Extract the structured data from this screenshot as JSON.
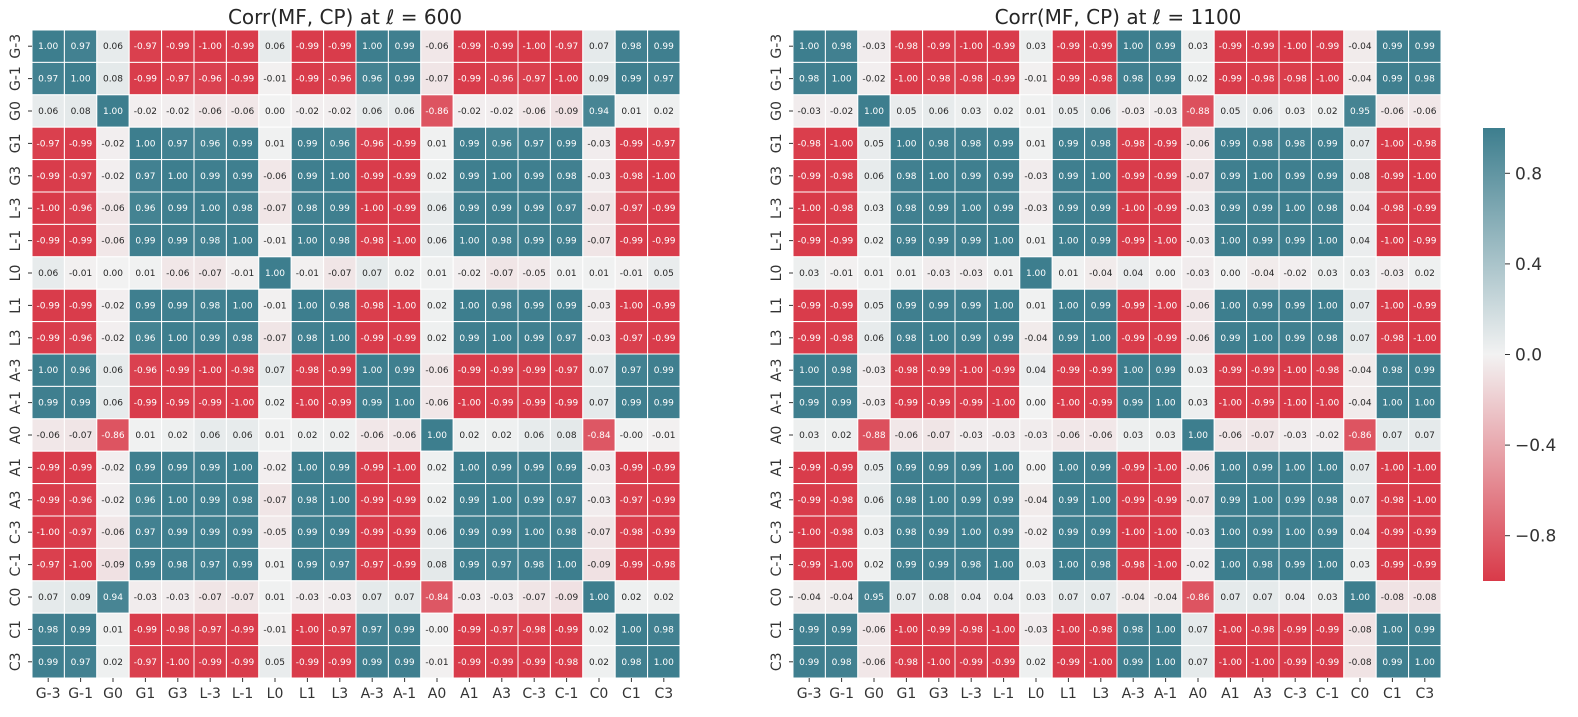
{
  "colors": {
    "negative": "#d93a49",
    "neutral": "#f2f2f2",
    "positive": "#3d7e8e"
  },
  "colorbar": {
    "vmin": -1,
    "vmax": 1,
    "ticks": [
      "0.8",
      "0.4",
      "0.0",
      "−0.4",
      "−0.8"
    ],
    "tick_values": [
      0.8,
      0.4,
      0.0,
      -0.4,
      -0.8
    ]
  },
  "chart_data": [
    {
      "type": "heatmap",
      "title": "Corr(MF, CP) at ℓ = 600",
      "labels": [
        "G-3",
        "G-1",
        "G0",
        "G1",
        "G3",
        "L-3",
        "L-1",
        "L0",
        "L1",
        "L3",
        "A-3",
        "A-1",
        "A0",
        "A1",
        "A3",
        "C-3",
        "C-1",
        "C0",
        "C1",
        "C3"
      ],
      "matrix": [
        [
          1.0,
          0.97,
          0.06,
          -0.97,
          -0.99,
          -1.0,
          -0.99,
          0.06,
          -0.99,
          -0.99,
          1.0,
          0.99,
          -0.06,
          -0.99,
          -0.99,
          -1.0,
          -0.97,
          0.07,
          0.98,
          0.99
        ],
        [
          0.97,
          1.0,
          0.08,
          -0.99,
          -0.97,
          -0.96,
          -0.99,
          -0.01,
          -0.99,
          -0.96,
          0.96,
          0.99,
          -0.07,
          -0.99,
          -0.96,
          -0.97,
          -1.0,
          0.09,
          0.99,
          0.97
        ],
        [
          0.06,
          0.08,
          1.0,
          -0.02,
          -0.02,
          -0.06,
          -0.06,
          0.0,
          -0.02,
          -0.02,
          0.06,
          0.06,
          -0.86,
          -0.02,
          -0.02,
          -0.06,
          -0.09,
          0.94,
          0.01,
          0.02
        ],
        [
          -0.97,
          -0.99,
          -0.02,
          1.0,
          0.97,
          0.96,
          0.99,
          0.01,
          0.99,
          0.96,
          -0.96,
          -0.99,
          0.01,
          0.99,
          0.96,
          0.97,
          0.99,
          -0.03,
          -0.99,
          -0.97
        ],
        [
          -0.99,
          -0.97,
          -0.02,
          0.97,
          1.0,
          0.99,
          0.99,
          -0.06,
          0.99,
          1.0,
          -0.99,
          -0.99,
          0.02,
          0.99,
          1.0,
          0.99,
          0.98,
          -0.03,
          -0.98,
          -1.0
        ],
        [
          -1.0,
          -0.96,
          -0.06,
          0.96,
          0.99,
          1.0,
          0.98,
          -0.07,
          0.98,
          0.99,
          -1.0,
          -0.99,
          0.06,
          0.99,
          0.99,
          0.99,
          0.97,
          -0.07,
          -0.97,
          -0.99
        ],
        [
          -0.99,
          -0.99,
          -0.06,
          0.99,
          0.99,
          0.98,
          1.0,
          -0.01,
          1.0,
          0.98,
          -0.98,
          -1.0,
          0.06,
          1.0,
          0.98,
          0.99,
          0.99,
          -0.07,
          -0.99,
          -0.99
        ],
        [
          0.06,
          -0.01,
          0.0,
          0.01,
          -0.06,
          -0.07,
          -0.01,
          1.0,
          -0.01,
          -0.07,
          0.07,
          0.02,
          0.01,
          -0.02,
          -0.07,
          -0.05,
          0.01,
          0.01,
          -0.01,
          0.05
        ],
        [
          -0.99,
          -0.99,
          -0.02,
          0.99,
          0.99,
          0.98,
          1.0,
          -0.01,
          1.0,
          0.98,
          -0.98,
          -1.0,
          0.02,
          1.0,
          0.98,
          0.99,
          0.99,
          -0.03,
          -1.0,
          -0.99
        ],
        [
          -0.99,
          -0.96,
          -0.02,
          0.96,
          1.0,
          0.99,
          0.98,
          -0.07,
          0.98,
          1.0,
          -0.99,
          -0.99,
          0.02,
          0.99,
          1.0,
          0.99,
          0.97,
          -0.03,
          -0.97,
          -0.99
        ],
        [
          1.0,
          0.96,
          0.06,
          -0.96,
          -0.99,
          -1.0,
          -0.98,
          0.07,
          -0.98,
          -0.99,
          1.0,
          0.99,
          -0.06,
          -0.99,
          -0.99,
          -0.99,
          -0.97,
          0.07,
          0.97,
          0.99
        ],
        [
          0.99,
          0.99,
          0.06,
          -0.99,
          -0.99,
          -0.99,
          -1.0,
          0.02,
          -1.0,
          -0.99,
          0.99,
          1.0,
          -0.06,
          -1.0,
          -0.99,
          -0.99,
          -0.99,
          0.07,
          0.99,
          0.99
        ],
        [
          -0.06,
          -0.07,
          -0.86,
          0.01,
          0.02,
          0.06,
          0.06,
          0.01,
          0.02,
          0.02,
          -0.06,
          -0.06,
          1.0,
          0.02,
          0.02,
          0.06,
          0.08,
          -0.84,
          -0.0,
          -0.01
        ],
        [
          -0.99,
          -0.99,
          -0.02,
          0.99,
          0.99,
          0.99,
          1.0,
          -0.02,
          1.0,
          0.99,
          -0.99,
          -1.0,
          0.02,
          1.0,
          0.99,
          0.99,
          0.99,
          -0.03,
          -0.99,
          -0.99
        ],
        [
          -0.99,
          -0.96,
          -0.02,
          0.96,
          1.0,
          0.99,
          0.98,
          -0.07,
          0.98,
          1.0,
          -0.99,
          -0.99,
          0.02,
          0.99,
          1.0,
          0.99,
          0.97,
          -0.03,
          -0.97,
          -0.99
        ],
        [
          -1.0,
          -0.97,
          -0.06,
          0.97,
          0.99,
          0.99,
          0.99,
          -0.05,
          0.99,
          0.99,
          -0.99,
          -0.99,
          0.06,
          0.99,
          0.99,
          1.0,
          0.98,
          -0.07,
          -0.98,
          -0.99
        ],
        [
          -0.97,
          -1.0,
          -0.09,
          0.99,
          0.98,
          0.97,
          0.99,
          0.01,
          0.99,
          0.97,
          -0.97,
          -0.99,
          0.08,
          0.99,
          0.97,
          0.98,
          1.0,
          -0.09,
          -0.99,
          -0.98
        ],
        [
          0.07,
          0.09,
          0.94,
          -0.03,
          -0.03,
          -0.07,
          -0.07,
          0.01,
          -0.03,
          -0.03,
          0.07,
          0.07,
          -0.84,
          -0.03,
          -0.03,
          -0.07,
          -0.09,
          1.0,
          0.02,
          0.02
        ],
        [
          0.98,
          0.99,
          0.01,
          -0.99,
          -0.98,
          -0.97,
          -0.99,
          -0.01,
          -1.0,
          -0.97,
          0.97,
          0.99,
          -0.0,
          -0.99,
          -0.97,
          -0.98,
          -0.99,
          0.02,
          1.0,
          0.98
        ],
        [
          0.99,
          0.97,
          0.02,
          -0.97,
          -1.0,
          -0.99,
          -0.99,
          0.05,
          -0.99,
          -0.99,
          0.99,
          0.99,
          -0.01,
          -0.99,
          -0.99,
          -0.99,
          -0.98,
          0.02,
          0.98,
          1.0
        ]
      ]
    },
    {
      "type": "heatmap",
      "title": "Corr(MF, CP) at ℓ = 1100",
      "labels": [
        "G-3",
        "G-1",
        "G0",
        "G1",
        "G3",
        "L-3",
        "L-1",
        "L0",
        "L1",
        "L3",
        "A-3",
        "A-1",
        "A0",
        "A1",
        "A3",
        "C-3",
        "C-1",
        "C0",
        "C1",
        "C3"
      ],
      "matrix": [
        [
          1.0,
          0.98,
          -0.03,
          -0.98,
          -0.99,
          -1.0,
          -0.99,
          0.03,
          -0.99,
          -0.99,
          1.0,
          0.99,
          0.03,
          -0.99,
          -0.99,
          -1.0,
          -0.99,
          -0.04,
          0.99,
          0.99
        ],
        [
          0.98,
          1.0,
          -0.02,
          -1.0,
          -0.98,
          -0.98,
          -0.99,
          -0.01,
          -0.99,
          -0.98,
          0.98,
          0.99,
          0.02,
          -0.99,
          -0.98,
          -0.98,
          -1.0,
          -0.04,
          0.99,
          0.98
        ],
        [
          -0.03,
          -0.02,
          1.0,
          0.05,
          0.06,
          0.03,
          0.02,
          0.01,
          0.05,
          0.06,
          -0.03,
          -0.03,
          -0.88,
          0.05,
          0.06,
          0.03,
          0.02,
          0.95,
          -0.06,
          -0.06
        ],
        [
          -0.98,
          -1.0,
          0.05,
          1.0,
          0.98,
          0.98,
          0.99,
          0.01,
          0.99,
          0.98,
          -0.98,
          -0.99,
          -0.06,
          0.99,
          0.98,
          0.98,
          0.99,
          0.07,
          -1.0,
          -0.98
        ],
        [
          -0.99,
          -0.98,
          0.06,
          0.98,
          1.0,
          0.99,
          0.99,
          -0.03,
          0.99,
          1.0,
          -0.99,
          -0.99,
          -0.07,
          0.99,
          1.0,
          0.99,
          0.99,
          0.08,
          -0.99,
          -1.0
        ],
        [
          -1.0,
          -0.98,
          0.03,
          0.98,
          0.99,
          1.0,
          0.99,
          -0.03,
          0.99,
          0.99,
          -1.0,
          -0.99,
          -0.03,
          0.99,
          0.99,
          1.0,
          0.98,
          0.04,
          -0.98,
          -0.99
        ],
        [
          -0.99,
          -0.99,
          0.02,
          0.99,
          0.99,
          0.99,
          1.0,
          0.01,
          1.0,
          0.99,
          -0.99,
          -1.0,
          -0.03,
          1.0,
          0.99,
          0.99,
          1.0,
          0.04,
          -1.0,
          -0.99
        ],
        [
          0.03,
          -0.01,
          0.01,
          0.01,
          -0.03,
          -0.03,
          0.01,
          1.0,
          0.01,
          -0.04,
          0.04,
          0.0,
          -0.03,
          0.0,
          -0.04,
          -0.02,
          0.03,
          0.03,
          -0.03,
          0.02
        ],
        [
          -0.99,
          -0.99,
          0.05,
          0.99,
          0.99,
          0.99,
          1.0,
          0.01,
          1.0,
          0.99,
          -0.99,
          -1.0,
          -0.06,
          1.0,
          0.99,
          0.99,
          1.0,
          0.07,
          -1.0,
          -0.99
        ],
        [
          -0.99,
          -0.98,
          0.06,
          0.98,
          1.0,
          0.99,
          0.99,
          -0.04,
          0.99,
          1.0,
          -0.99,
          -0.99,
          -0.06,
          0.99,
          1.0,
          0.99,
          0.98,
          0.07,
          -0.98,
          -1.0
        ],
        [
          1.0,
          0.98,
          -0.03,
          -0.98,
          -0.99,
          -1.0,
          -0.99,
          0.04,
          -0.99,
          -0.99,
          1.0,
          0.99,
          0.03,
          -0.99,
          -0.99,
          -1.0,
          -0.98,
          -0.04,
          0.98,
          0.99
        ],
        [
          0.99,
          0.99,
          -0.03,
          -0.99,
          -0.99,
          -0.99,
          -1.0,
          0.0,
          -1.0,
          -0.99,
          0.99,
          1.0,
          0.03,
          -1.0,
          -0.99,
          -1.0,
          -1.0,
          -0.04,
          1.0,
          1.0
        ],
        [
          0.03,
          0.02,
          -0.88,
          -0.06,
          -0.07,
          -0.03,
          -0.03,
          -0.03,
          -0.06,
          -0.06,
          0.03,
          0.03,
          1.0,
          -0.06,
          -0.07,
          -0.03,
          -0.02,
          -0.86,
          0.07,
          0.07
        ],
        [
          -0.99,
          -0.99,
          0.05,
          0.99,
          0.99,
          0.99,
          1.0,
          0.0,
          1.0,
          0.99,
          -0.99,
          -1.0,
          -0.06,
          1.0,
          0.99,
          1.0,
          1.0,
          0.07,
          -1.0,
          -1.0
        ],
        [
          -0.99,
          -0.98,
          0.06,
          0.98,
          1.0,
          0.99,
          0.99,
          -0.04,
          0.99,
          1.0,
          -0.99,
          -0.99,
          -0.07,
          0.99,
          1.0,
          0.99,
          0.98,
          0.07,
          -0.98,
          -1.0
        ],
        [
          -1.0,
          -0.98,
          0.03,
          0.98,
          0.99,
          1.0,
          0.99,
          -0.02,
          0.99,
          0.99,
          -1.0,
          -1.0,
          -0.03,
          1.0,
          0.99,
          1.0,
          0.99,
          0.04,
          -0.99,
          -0.99
        ],
        [
          -0.99,
          -1.0,
          0.02,
          0.99,
          0.99,
          0.98,
          1.0,
          0.03,
          1.0,
          0.98,
          -0.98,
          -1.0,
          -0.02,
          1.0,
          0.98,
          0.99,
          1.0,
          0.03,
          -0.99,
          -0.99
        ],
        [
          -0.04,
          -0.04,
          0.95,
          0.07,
          0.08,
          0.04,
          0.04,
          0.03,
          0.07,
          0.07,
          -0.04,
          -0.04,
          -0.86,
          0.07,
          0.07,
          0.04,
          0.03,
          1.0,
          -0.08,
          -0.08
        ],
        [
          0.99,
          0.99,
          -0.06,
          -1.0,
          -0.99,
          -0.98,
          -1.0,
          -0.03,
          -1.0,
          -0.98,
          0.98,
          1.0,
          0.07,
          -1.0,
          -0.98,
          -0.99,
          -0.99,
          -0.08,
          1.0,
          0.99
        ],
        [
          0.99,
          0.98,
          -0.06,
          -0.98,
          -1.0,
          -0.99,
          -0.99,
          0.02,
          -0.99,
          -1.0,
          0.99,
          1.0,
          0.07,
          -1.0,
          -1.0,
          -0.99,
          -0.99,
          -0.08,
          0.99,
          1.0
        ]
      ]
    }
  ]
}
